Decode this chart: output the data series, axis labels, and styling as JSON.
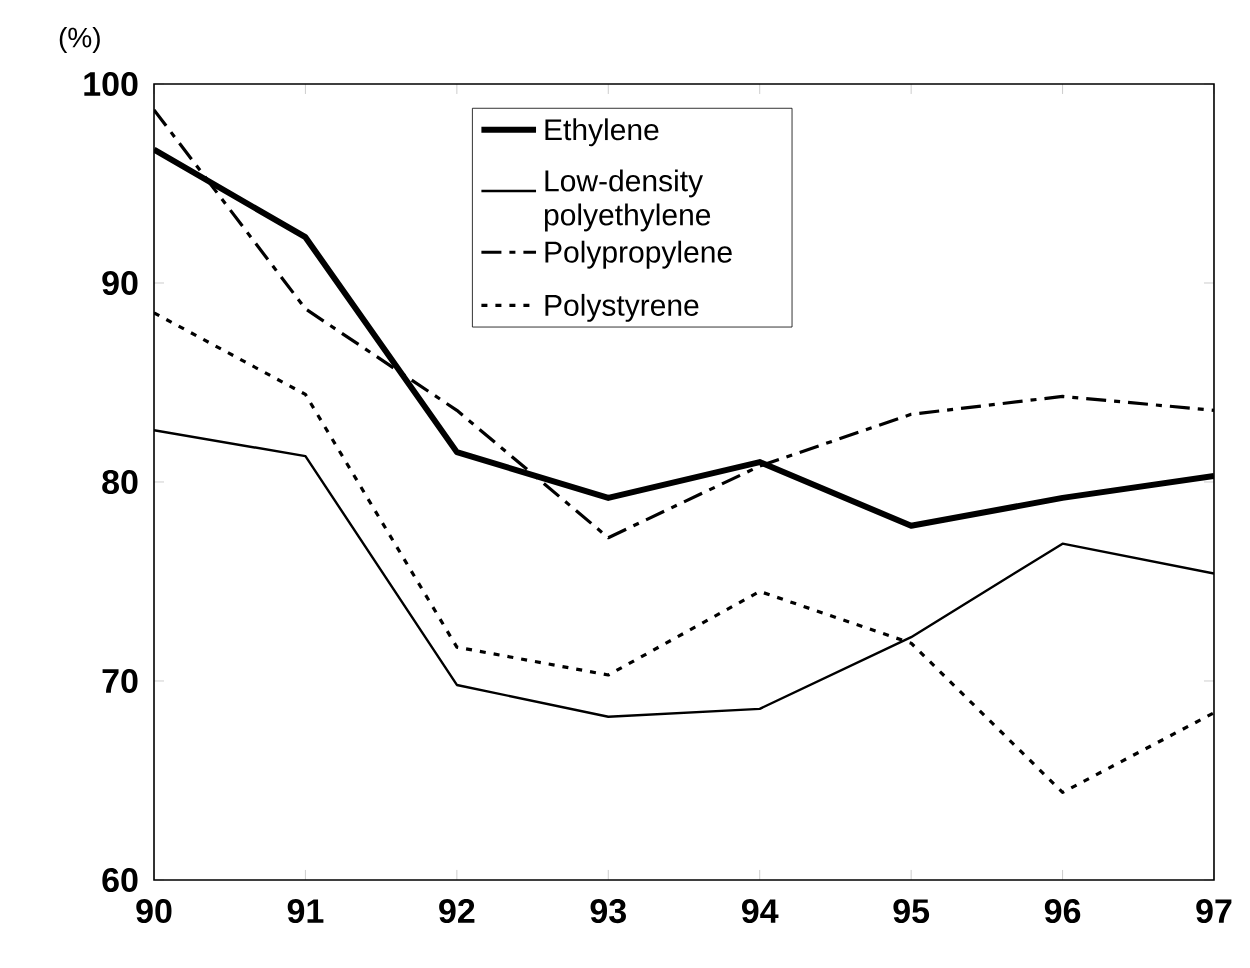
{
  "chart_data": {
    "type": "line",
    "ylabel": "(%)",
    "categories": [
      "90",
      "91",
      "92",
      "93",
      "94",
      "95",
      "96",
      "97"
    ],
    "ylim": [
      60,
      100
    ],
    "yticks": [
      60,
      70,
      80,
      90,
      100
    ],
    "grid": false,
    "legend": "top",
    "series": [
      {
        "name": "Ethylene",
        "color": "#000000",
        "line_style": "solid",
        "values": [
          96.7,
          92.3,
          81.5,
          79.2,
          81.0,
          77.8,
          79.2,
          80.3
        ]
      },
      {
        "name": "Low-density polyethylene",
        "color": "#000000",
        "line_style": "solid",
        "values": [
          82.6,
          81.3,
          69.8,
          68.2,
          68.6,
          72.2,
          76.9,
          75.4
        ]
      },
      {
        "name": "Polypropylene",
        "color": "#000000",
        "line_style": "dashdot",
        "values": [
          98.7,
          88.7,
          83.6,
          77.2,
          80.8,
          83.4,
          84.3,
          83.6
        ]
      },
      {
        "name": "Polystyrene",
        "color": "#000000",
        "line_style": "dotted",
        "values": [
          88.5,
          84.4,
          71.7,
          70.3,
          74.5,
          71.9,
          64.4,
          68.4
        ]
      }
    ]
  }
}
